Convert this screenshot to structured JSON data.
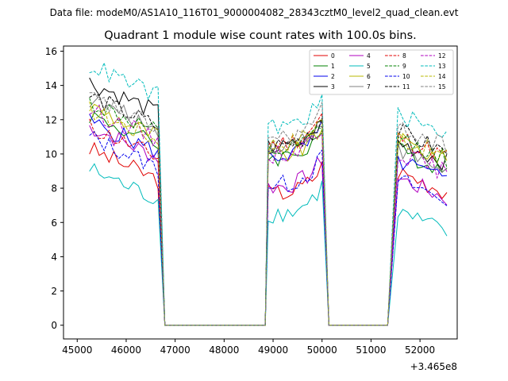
{
  "suptitle": "Data file: modeM0/AS1A10_116T01_9000004082_28343cztM0_level2_quad_clean.evt",
  "chart_data": {
    "type": "line",
    "title": "Quadrant 1 module wise count rates with 100.0s bins.",
    "xlabel": "",
    "ylabel": "",
    "x_offset_label": "+3.465e8",
    "xlim": [
      44720,
      52760
    ],
    "ylim": [
      -0.8,
      16.3
    ],
    "x_ticks": [
      45000,
      46000,
      47000,
      48000,
      49000,
      50000,
      51000,
      52000
    ],
    "x_tick_labels": [
      "45000",
      "46000",
      "47000",
      "48000",
      "49000",
      "50000",
      "51000",
      "52000"
    ],
    "y_ticks": [
      0,
      2,
      4,
      6,
      8,
      10,
      12,
      14,
      16
    ],
    "y_tick_labels": [
      "0",
      "2",
      "4",
      "6",
      "8",
      "10",
      "12",
      "14",
      "16"
    ],
    "segments": [
      {
        "start": 45250,
        "end": 46650
      },
      {
        "start": 48900,
        "end": 50000
      },
      {
        "start": 51550,
        "end": 52550
      }
    ],
    "gaps_zero": [
      [
        46650,
        46790,
        48840,
        48900
      ],
      [
        50000,
        50140,
        51340,
        51550
      ]
    ],
    "series": [
      {
        "name": "0",
        "color": "#e00000",
        "dash": "solid",
        "levels": [
          10.3,
          7.7,
          9.0
        ]
      },
      {
        "name": "1",
        "color": "#008000",
        "dash": "solid",
        "levels": [
          12.3,
          9.8,
          10.2
        ]
      },
      {
        "name": "2",
        "color": "#0000ee",
        "dash": "solid",
        "levels": [
          11.9,
          9.9,
          9.6
        ]
      },
      {
        "name": "3",
        "color": "#000000",
        "dash": "solid",
        "levels": [
          14.2,
          10.3,
          10.7
        ]
      },
      {
        "name": "4",
        "color": "#b000c0",
        "dash": "solid",
        "levels": [
          11.6,
          8.1,
          8.6
        ]
      },
      {
        "name": "5",
        "color": "#00bbbb",
        "dash": "solid",
        "levels": [
          9.1,
          6.5,
          6.6
        ]
      },
      {
        "name": "6",
        "color": "#b8b800",
        "dash": "solid",
        "levels": [
          12.8,
          9.9,
          10.8
        ]
      },
      {
        "name": "7",
        "color": "#808080",
        "dash": "solid",
        "levels": [
          13.2,
          10.5,
          10.2
        ]
      },
      {
        "name": "8",
        "color": "#e00000",
        "dash": "dashed",
        "levels": [
          11.6,
          10.6,
          11.0
        ]
      },
      {
        "name": "9",
        "color": "#008000",
        "dash": "dashed",
        "levels": [
          13.0,
          10.1,
          10.9
        ]
      },
      {
        "name": "10",
        "color": "#0000ee",
        "dash": "dashed",
        "levels": [
          11.0,
          8.2,
          8.5
        ]
      },
      {
        "name": "11",
        "color": "#000000",
        "dash": "dashed",
        "levels": [
          13.4,
          10.5,
          11.3
        ]
      },
      {
        "name": "12",
        "color": "#b000c0",
        "dash": "dashed",
        "levels": [
          12.6,
          10.0,
          10.1
        ]
      },
      {
        "name": "13",
        "color": "#00bbbb",
        "dash": "dashed",
        "levels": [
          15.2,
          11.6,
          12.3
        ]
      },
      {
        "name": "14",
        "color": "#b8b800",
        "dash": "dashed",
        "levels": [
          12.6,
          10.6,
          11.0
        ]
      },
      {
        "name": "15",
        "color": "#808080",
        "dash": "dashed",
        "levels": [
          13.3,
          10.9,
          11.6
        ]
      }
    ],
    "legend_loc": "top-right",
    "grid": false
  }
}
